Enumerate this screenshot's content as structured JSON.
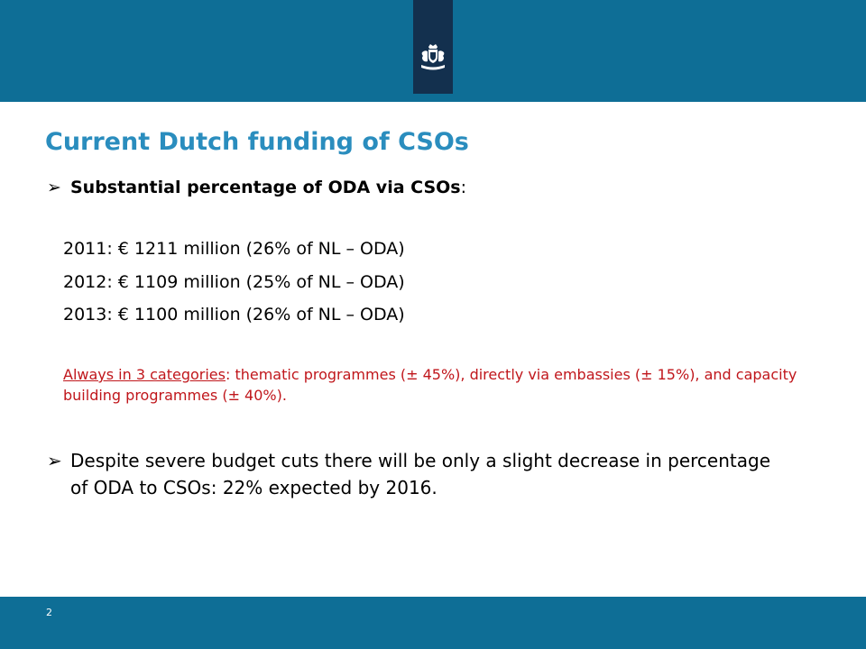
{
  "slide": {
    "title": "Current Dutch funding of CSOs",
    "bullet1": {
      "arrow": "➢",
      "bold_text": "Substantial percentage of ODA via CSOs",
      "colon": ":"
    },
    "years": [
      "2011: € 1211 million (26% of NL – ODA)",
      "2012: € 1109 million (25% of NL – ODA)",
      "2013: € 1100 million (26% of NL – ODA)"
    ],
    "categories": {
      "underlined": "Always in 3 categories",
      "rest": ": thematic programmes (± 45%), directly via embassies (± 15%), and capacity building programmes (± 40%)."
    },
    "bullet2": {
      "arrow": "➢",
      "text": "Despite severe budget cuts there will be only a slight decrease in percentage of ODA to CSOs: 22% expected by 2016."
    },
    "page_number": "2"
  },
  "colors": {
    "header_bar": "#0e6e96",
    "emblem_panel": "#13304e",
    "title": "#2a8dbe",
    "highlight_text": "#c0161b"
  },
  "icons": {
    "emblem": "dutch-government-coat-of-arms"
  }
}
